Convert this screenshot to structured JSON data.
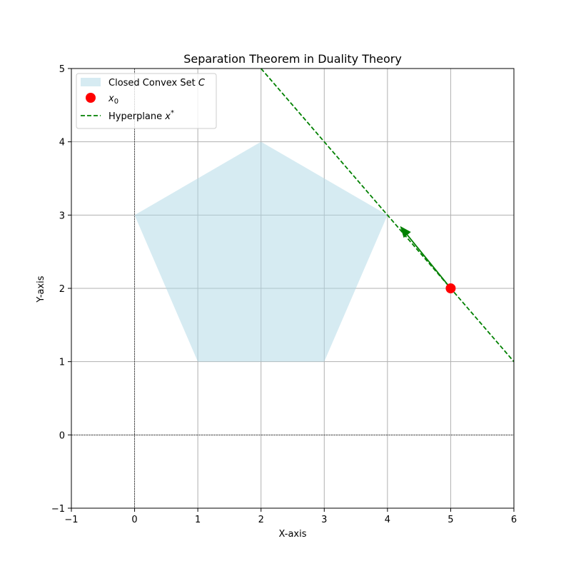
{
  "chart_data": {
    "type": "scatter",
    "title": "Separation Theorem in Duality Theory",
    "xlabel": "X-axis",
    "ylabel": "Y-axis",
    "xlim": [
      -1,
      6
    ],
    "ylim": [
      -1,
      5
    ],
    "xticks": [
      -1,
      0,
      1,
      2,
      3,
      4,
      5,
      6
    ],
    "yticks": [
      -1,
      0,
      1,
      2,
      3,
      4,
      5
    ],
    "xtick_labels": [
      "−1",
      "0",
      "1",
      "2",
      "3",
      "4",
      "5",
      "6"
    ],
    "ytick_labels": [
      "−1",
      "0",
      "1",
      "2",
      "3",
      "4",
      "5"
    ],
    "grid": true,
    "legend_position": "top-left",
    "reference_lines": {
      "x": 0,
      "y": 0
    },
    "convex_set": {
      "legend": "Closed Convex Set C",
      "vertices": [
        [
          0,
          3
        ],
        [
          2,
          4
        ],
        [
          4,
          3
        ],
        [
          3,
          1
        ],
        [
          1,
          1
        ]
      ],
      "color": "#add8e6"
    },
    "point": {
      "legend": "x0",
      "x": 5,
      "y": 2,
      "color": "#ff0000"
    },
    "hyperplane": {
      "legend": "Hyperplane x*",
      "points": [
        [
          2,
          5
        ],
        [
          6,
          1
        ]
      ],
      "color": "#008000",
      "style": "dashed"
    },
    "arrow": {
      "from": [
        5,
        2
      ],
      "to": [
        4.2,
        2.85
      ],
      "color": "#008000"
    }
  },
  "legend": {
    "convex_set_label": "Closed Convex Set ",
    "convex_set_symbol": "C",
    "point_symbol": "x",
    "point_sub": "0",
    "hyperplane_label": "Hyperplane ",
    "hyperplane_symbol": "x",
    "hyperplane_sup": "*"
  }
}
